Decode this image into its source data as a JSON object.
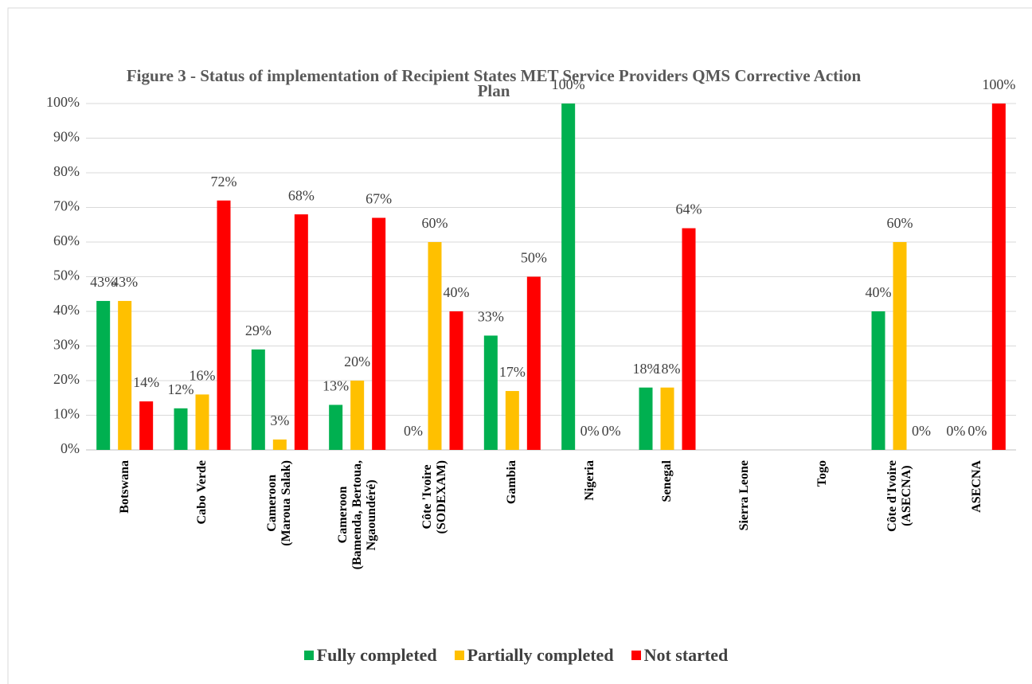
{
  "chart_data": {
    "type": "bar",
    "title": "Figure 3 - Status of implementation of Recipient States MET Service Providers QMS Corrective Action Plan",
    "categories": [
      "Botswana",
      "Cabo Verde",
      "Cameroon\n(Maroua Salak)",
      "Cameroon\n(Bamenda, Bertoua,\nNgaoundéré)",
      "Côte 'Ivoire\n(SODEXAM)",
      "Gambia",
      "Nigeria",
      "Senegal",
      "Sierra Leone",
      "Togo",
      "Côte d'Ivoire\n(ASECNA)",
      "ASECNA"
    ],
    "series": [
      {
        "name": "Fully completed",
        "color": "#00b050",
        "values": [
          43,
          12,
          29,
          13,
          0,
          33,
          100,
          18,
          null,
          null,
          40,
          0
        ],
        "value_labels": [
          "43%",
          "12%",
          "29%",
          "13%",
          "0%",
          "33%",
          "100%",
          "18%",
          null,
          null,
          "40%",
          "0%"
        ]
      },
      {
        "name": "Partially completed",
        "color": "#ffc000",
        "values": [
          43,
          16,
          3,
          20,
          60,
          17,
          0,
          18,
          null,
          null,
          60,
          0
        ],
        "value_labels": [
          "43%",
          "16%",
          "3%",
          "20%",
          "60%",
          "17%",
          "0%",
          "18%",
          null,
          null,
          "60%",
          "0%"
        ]
      },
      {
        "name": "Not started",
        "color": "#ff0000",
        "values": [
          14,
          72,
          68,
          67,
          40,
          50,
          0,
          64,
          null,
          null,
          0,
          100
        ],
        "value_labels": [
          "14%",
          "72%",
          "68%",
          "67%",
          "40%",
          "50%",
          "0%",
          "64%",
          null,
          null,
          "0%",
          "100%"
        ]
      }
    ],
    "ylim": [
      0,
      100
    ],
    "yticks": [
      {
        "value": 0,
        "label": "0%"
      },
      {
        "value": 10,
        "label": "10%"
      },
      {
        "value": 20,
        "label": "20%"
      },
      {
        "value": 30,
        "label": "30%"
      },
      {
        "value": 40,
        "label": "40%"
      },
      {
        "value": 50,
        "label": "50%"
      },
      {
        "value": 60,
        "label": "60%"
      },
      {
        "value": 70,
        "label": "70%"
      },
      {
        "value": 80,
        "label": "80%"
      },
      {
        "value": 90,
        "label": "90%"
      },
      {
        "value": 100,
        "label": "100%"
      }
    ],
    "grid": true,
    "legend": "bottom"
  }
}
